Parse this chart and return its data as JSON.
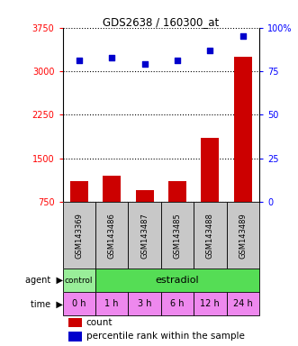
{
  "title": "GDS2638 / 160300_at",
  "samples": [
    "GSM143369",
    "GSM143486",
    "GSM143487",
    "GSM143485",
    "GSM143488",
    "GSM143489"
  ],
  "counts": [
    1100,
    1200,
    950,
    1100,
    1850,
    3250
  ],
  "percentiles": [
    81,
    83,
    79,
    81,
    87,
    95
  ],
  "ylim_left": [
    750,
    3750
  ],
  "ylim_right": [
    0,
    100
  ],
  "yticks_left": [
    750,
    1500,
    2250,
    3000,
    3750
  ],
  "yticks_right": [
    0,
    25,
    50,
    75,
    100
  ],
  "ytick_labels_left": [
    "750",
    "1500",
    "2250",
    "3000",
    "3750"
  ],
  "ytick_labels_right": [
    "0",
    "25",
    "50",
    "75",
    "100%"
  ],
  "bar_color": "#cc0000",
  "dot_color": "#0000cc",
  "time_labels": [
    "0 h",
    "1 h",
    "3 h",
    "6 h",
    "12 h",
    "24 h"
  ],
  "gsm_bg": "#c8c8c8",
  "control_color": "#99ee99",
  "estradiol_color": "#55dd55",
  "time_color": "#ee88ee",
  "legend_bar_color": "#cc0000",
  "legend_dot_color": "#0000cc",
  "legend_bar_label": "count",
  "legend_dot_label": "percentile rank within the sample"
}
